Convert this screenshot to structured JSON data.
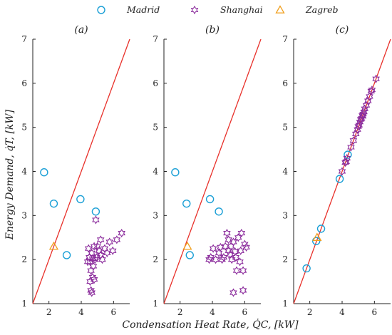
{
  "chart_data": [
    {
      "type": "scatter",
      "title": "(a)",
      "xlim": [
        1,
        7
      ],
      "ylim": [
        1,
        7
      ],
      "xticks": [
        "2",
        "4",
        "6"
      ],
      "yticks": [
        "1",
        "2",
        "3",
        "4",
        "5",
        "6",
        "7"
      ],
      "reference_line": {
        "type": "y=x",
        "color": "#e8302a"
      },
      "series": [
        {
          "name": "Madrid",
          "marker": "circle",
          "color": "#1a9fd6",
          "points": [
            [
              1.7,
              3.98
            ],
            [
              2.3,
              3.27
            ],
            [
              3.1,
              2.1
            ],
            [
              3.95,
              3.37
            ],
            [
              4.9,
              3.09
            ]
          ]
        },
        {
          "name": "Shanghai",
          "marker": "hexagram",
          "color": "#8b2c9c",
          "points": [
            [
              4.45,
              2.25
            ],
            [
              4.5,
              2.05
            ],
            [
              4.55,
              1.95
            ],
            [
              4.6,
              1.75
            ],
            [
              4.65,
              2.15
            ],
            [
              4.7,
              2.02
            ],
            [
              4.75,
              1.85
            ],
            [
              4.8,
              2.3
            ],
            [
              4.85,
              2.0
            ],
            [
              4.9,
              2.9
            ],
            [
              4.6,
              1.3
            ],
            [
              4.65,
              1.25
            ],
            [
              4.7,
              1.6
            ],
            [
              4.8,
              1.55
            ],
            [
              4.95,
              2.05
            ],
            [
              5.1,
              2.2
            ],
            [
              5.2,
              2.45
            ],
            [
              5.3,
              2.0
            ],
            [
              5.45,
              2.25
            ],
            [
              5.6,
              2.15
            ],
            [
              5.75,
              2.4
            ],
            [
              5.95,
              2.2
            ],
            [
              6.2,
              2.45
            ],
            [
              6.5,
              2.6
            ],
            [
              4.4,
              1.95
            ],
            [
              4.55,
              1.5
            ],
            [
              5.0,
              2.3
            ],
            [
              5.2,
              2.1
            ]
          ]
        },
        {
          "name": "Zagreb",
          "marker": "triangle",
          "color": "#f0a020",
          "points": [
            [
              2.3,
              2.3
            ]
          ]
        }
      ]
    },
    {
      "type": "scatter",
      "title": "(b)",
      "xlim": [
        1,
        7
      ],
      "ylim": [
        1,
        7
      ],
      "xticks": [
        "2",
        "4",
        "6"
      ],
      "yticks": [
        "1",
        "2",
        "3",
        "4",
        "5",
        "6",
        "7"
      ],
      "reference_line": {
        "type": "y=x",
        "color": "#e8302a"
      },
      "series": [
        {
          "name": "Madrid",
          "marker": "circle",
          "color": "#1a9fd6",
          "points": [
            [
              1.7,
              3.98
            ],
            [
              2.4,
              3.27
            ],
            [
              2.6,
              2.1
            ],
            [
              3.85,
              3.37
            ],
            [
              4.4,
              3.09
            ]
          ]
        },
        {
          "name": "Shanghai",
          "marker": "hexagram",
          "color": "#8b2c9c",
          "points": [
            [
              3.8,
              2.0
            ],
            [
              3.9,
              2.05
            ],
            [
              4.05,
              2.25
            ],
            [
              4.4,
              2.15
            ],
            [
              4.5,
              2.28
            ],
            [
              4.6,
              2.0
            ],
            [
              4.7,
              2.05
            ],
            [
              4.8,
              2.3
            ],
            [
              4.9,
              2.6
            ],
            [
              5.0,
              2.2
            ],
            [
              5.1,
              2.12
            ],
            [
              5.15,
              2.3
            ],
            [
              5.2,
              2.0
            ],
            [
              5.3,
              2.4
            ],
            [
              5.4,
              2.18
            ],
            [
              5.5,
              1.75
            ],
            [
              5.6,
              2.5
            ],
            [
              5.7,
              1.95
            ],
            [
              5.8,
              2.6
            ],
            [
              5.9,
              1.75
            ],
            [
              6.0,
              2.35
            ],
            [
              6.1,
              2.28
            ],
            [
              5.3,
              1.25
            ],
            [
              5.9,
              1.3
            ],
            [
              5.45,
              2.05
            ],
            [
              4.2,
              2.0
            ],
            [
              5.0,
              2.45
            ],
            [
              5.75,
              2.2
            ]
          ]
        },
        {
          "name": "Zagreb",
          "marker": "triangle",
          "color": "#f0a020",
          "points": [
            [
              2.45,
              2.3
            ]
          ]
        }
      ]
    },
    {
      "type": "scatter",
      "title": "(c)",
      "xlim": [
        1,
        7
      ],
      "ylim": [
        1,
        7
      ],
      "xticks": [
        "2",
        "4",
        "6"
      ],
      "yticks": [
        "1",
        "2",
        "3",
        "4",
        "5",
        "6",
        "7"
      ],
      "reference_line": {
        "type": "y=x",
        "color": "#e8302a"
      },
      "series": [
        {
          "name": "Madrid",
          "marker": "circle",
          "color": "#1a9fd6",
          "points": [
            [
              1.8,
              1.8
            ],
            [
              2.4,
              2.42
            ],
            [
              2.7,
              2.7
            ],
            [
              3.85,
              3.83
            ],
            [
              4.35,
              4.38
            ]
          ]
        },
        {
          "name": "Shanghai",
          "marker": "hexagram",
          "color": "#8b2c9c",
          "points": [
            [
              4.0,
              4.0
            ],
            [
              4.2,
              4.2
            ],
            [
              4.3,
              4.3
            ],
            [
              4.55,
              4.55
            ],
            [
              4.7,
              4.7
            ],
            [
              4.85,
              4.85
            ],
            [
              4.95,
              4.95
            ],
            [
              5.0,
              5.02
            ],
            [
              5.05,
              5.05
            ],
            [
              5.1,
              5.12
            ],
            [
              5.2,
              5.2
            ],
            [
              5.25,
              5.27
            ],
            [
              5.3,
              5.3
            ],
            [
              5.35,
              5.35
            ],
            [
              5.4,
              5.42
            ],
            [
              5.5,
              5.5
            ],
            [
              5.6,
              5.6
            ],
            [
              5.7,
              5.7
            ],
            [
              5.8,
              5.82
            ],
            [
              5.85,
              5.85
            ],
            [
              6.1,
              6.1
            ],
            [
              5.28,
              5.25
            ],
            [
              5.15,
              5.18
            ],
            [
              4.25,
              4.22
            ]
          ]
        },
        {
          "name": "Zagreb",
          "marker": "triangle",
          "color": "#f0a020",
          "points": [
            [
              2.45,
              2.5
            ]
          ]
        }
      ]
    }
  ],
  "legend": {
    "position": "top-center",
    "entries": [
      {
        "label": "Madrid",
        "marker": "circle",
        "color": "#1a9fd6"
      },
      {
        "label": "Shanghai",
        "marker": "hexagram",
        "color": "#8b2c9c"
      },
      {
        "label": "Zagreb",
        "marker": "triangle",
        "color": "#f0a020"
      }
    ]
  },
  "axes": {
    "ylabel": "Energy Demand, q̇T, [kW]",
    "xlabel": "Condensation Heat Rate, Q̇C, [kW]"
  }
}
